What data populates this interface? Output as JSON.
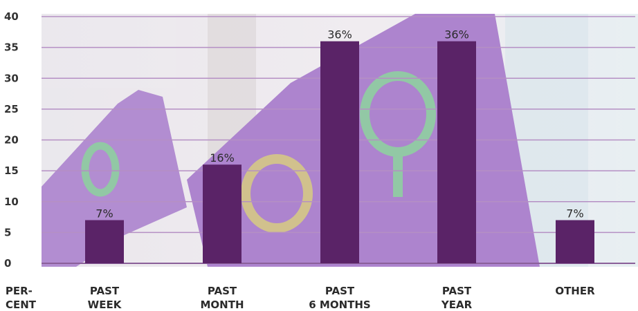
{
  "chart_data": {
    "type": "bar",
    "categories": [
      [
        "PAST",
        "WEEK"
      ],
      [
        "PAST",
        "MONTH"
      ],
      [
        "PAST",
        "6 MONTHS"
      ],
      [
        "PAST",
        "YEAR"
      ],
      [
        "OTHER"
      ]
    ],
    "values": [
      7,
      16,
      36,
      36,
      7
    ],
    "data_labels": [
      "7%",
      "16%",
      "36%",
      "36%",
      "7%"
    ],
    "y_unit_label": [
      "PER-",
      "CENT"
    ],
    "yticks": [
      "0",
      "5",
      "10",
      "15",
      "20",
      "25",
      "30",
      "35",
      "40"
    ],
    "ylim": [
      0,
      40
    ],
    "grid": true,
    "legend": "none",
    "colors": {
      "bar": "#5a2367",
      "grid": "#b58fc4",
      "baseline": "#8a5f99",
      "background_flag": "#a576c8",
      "background_symbol": "#7fbf96",
      "background_fist": "#c9b77a"
    }
  }
}
